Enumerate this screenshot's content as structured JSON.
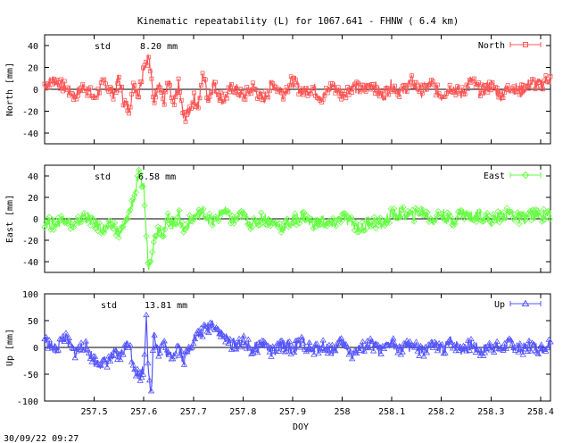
{
  "page": {
    "title": "Kinematic repeatability (L) for 1067.641 - FHNW  (  6.4 km)",
    "timestamp": "30/09/22 09:27"
  },
  "chart_data": [
    {
      "type": "line",
      "panel": "north",
      "ylabel": "North [mm]",
      "ylim": [
        -50,
        50
      ],
      "yticks": [
        -40,
        -20,
        0,
        20,
        40
      ],
      "xlim": [
        257.4,
        258.42
      ],
      "std_label": "std",
      "std_value": "8.20 mm",
      "legend": {
        "label": "North",
        "placement": "top-right",
        "marker": "square"
      },
      "color": "#ff5555",
      "grid": false,
      "series": [
        {
          "name": "North",
          "x": [
            257.4,
            257.42,
            257.44,
            257.46,
            257.48,
            257.5,
            257.52,
            257.54,
            257.55,
            257.56,
            257.57,
            257.58,
            257.59,
            257.6,
            257.61,
            257.62,
            257.63,
            257.64,
            257.65,
            257.66,
            257.67,
            257.68,
            257.69,
            257.7,
            257.71,
            257.72,
            257.73,
            257.74,
            257.75,
            257.76,
            257.78,
            257.8,
            257.82,
            257.84,
            257.86,
            257.88,
            257.9,
            257.92,
            257.94,
            257.96,
            257.98,
            258.0,
            258.02,
            258.04,
            258.06,
            258.08,
            258.1,
            258.12,
            258.14,
            258.16,
            258.18,
            258.2,
            258.22,
            258.24,
            258.26,
            258.28,
            258.3,
            258.32,
            258.34,
            258.36,
            258.38,
            258.4,
            258.42
          ],
          "y": [
            5,
            8,
            2,
            -6,
            3,
            -8,
            6,
            -4,
            10,
            -12,
            -18,
            5,
            -4,
            22,
            30,
            -10,
            8,
            -12,
            6,
            -18,
            4,
            -26,
            -22,
            -8,
            -14,
            15,
            -10,
            6,
            -4,
            -10,
            3,
            -7,
            2,
            -10,
            5,
            -4,
            8,
            -3,
            2,
            -8,
            4,
            -5,
            3,
            -1,
            6,
            -6,
            4,
            -3,
            7,
            -2,
            5,
            -6,
            3,
            -4,
            8,
            -2,
            4,
            -5,
            3,
            -2,
            6,
            4,
            12
          ]
        }
      ]
    },
    {
      "type": "line",
      "panel": "east",
      "ylabel": "East [mm]",
      "ylim": [
        -50,
        50
      ],
      "yticks": [
        -40,
        -20,
        0,
        20,
        40
      ],
      "xlim": [
        257.4,
        258.42
      ],
      "std_label": "std",
      "std_value": "6.58 mm",
      "legend": {
        "label": "East",
        "placement": "top-right",
        "marker": "diamond"
      },
      "color": "#66ff44",
      "grid": false,
      "series": [
        {
          "name": "East",
          "x": [
            257.4,
            257.42,
            257.44,
            257.46,
            257.48,
            257.5,
            257.52,
            257.54,
            257.55,
            257.56,
            257.57,
            257.58,
            257.59,
            257.6,
            257.605,
            257.61,
            257.62,
            257.63,
            257.64,
            257.65,
            257.66,
            257.67,
            257.68,
            257.7,
            257.72,
            257.74,
            257.76,
            257.78,
            257.8,
            257.82,
            257.84,
            257.86,
            257.88,
            257.9,
            257.92,
            257.94,
            257.96,
            257.98,
            258.0,
            258.02,
            258.04,
            258.06,
            258.08,
            258.1,
            258.12,
            258.14,
            258.16,
            258.18,
            258.2,
            258.22,
            258.24,
            258.26,
            258.28,
            258.3,
            258.32,
            258.34,
            258.36,
            258.38,
            258.4,
            258.42
          ],
          "y": [
            -2,
            -6,
            2,
            -8,
            4,
            -4,
            -10,
            -6,
            -14,
            -8,
            5,
            20,
            40,
            30,
            -15,
            -46,
            -20,
            -8,
            -12,
            2,
            -6,
            4,
            -10,
            2,
            6,
            -4,
            8,
            -2,
            4,
            -6,
            2,
            -4,
            -8,
            -2,
            3,
            -5,
            -1,
            -6,
            2,
            -4,
            -9,
            -2,
            -5,
            4,
            6,
            2,
            8,
            -1,
            5,
            -3,
            6,
            2,
            4,
            -2,
            3,
            5,
            -1,
            4,
            2,
            6
          ]
        }
      ]
    },
    {
      "type": "line",
      "panel": "up",
      "ylabel": "Up [mm]",
      "ylim": [
        -100,
        100
      ],
      "yticks": [
        -100,
        -50,
        0,
        50,
        100
      ],
      "xlim": [
        257.4,
        258.42
      ],
      "std_label": "std",
      "std_value": "13.81 mm",
      "legend": {
        "label": "Up",
        "placement": "top-right",
        "marker": "triangle"
      },
      "color": "#5555ff",
      "grid": false,
      "xlabel": "DOY",
      "xticks": [
        "257.5",
        "257.6",
        "257.7",
        "257.8",
        "257.9",
        "258",
        "258.1",
        "258.2",
        "258.3",
        "258.4"
      ],
      "xtick_values": [
        257.5,
        257.6,
        257.7,
        257.8,
        257.9,
        258.0,
        258.1,
        258.2,
        258.3,
        258.4
      ],
      "series": [
        {
          "name": "Up",
          "x": [
            257.4,
            257.42,
            257.44,
            257.46,
            257.48,
            257.5,
            257.52,
            257.54,
            257.55,
            257.56,
            257.57,
            257.58,
            257.59,
            257.6,
            257.605,
            257.61,
            257.615,
            257.62,
            257.63,
            257.64,
            257.65,
            257.66,
            257.67,
            257.68,
            257.7,
            257.72,
            257.74,
            257.76,
            257.78,
            257.8,
            257.82,
            257.84,
            257.86,
            257.88,
            257.9,
            257.92,
            257.94,
            257.96,
            257.98,
            258.0,
            258.02,
            258.04,
            258.06,
            258.08,
            258.1,
            258.12,
            258.14,
            258.16,
            258.18,
            258.2,
            258.22,
            258.24,
            258.26,
            258.28,
            258.3,
            258.32,
            258.34,
            258.36,
            258.38,
            258.4,
            258.42
          ],
          "y": [
            15,
            -5,
            20,
            -10,
            5,
            -25,
            -30,
            -15,
            -20,
            -5,
            10,
            -35,
            -55,
            -40,
            65,
            -60,
            -90,
            30,
            -10,
            10,
            -20,
            -10,
            5,
            -25,
            15,
            30,
            45,
            20,
            5,
            12,
            -5,
            8,
            -10,
            5,
            -3,
            10,
            -8,
            4,
            -6,
            8,
            -12,
            -2,
            6,
            -8,
            10,
            -4,
            6,
            -10,
            4,
            -6,
            10,
            -3,
            5,
            -8,
            4,
            -2,
            8,
            -6,
            5,
            -4,
            10
          ]
        }
      ]
    }
  ]
}
